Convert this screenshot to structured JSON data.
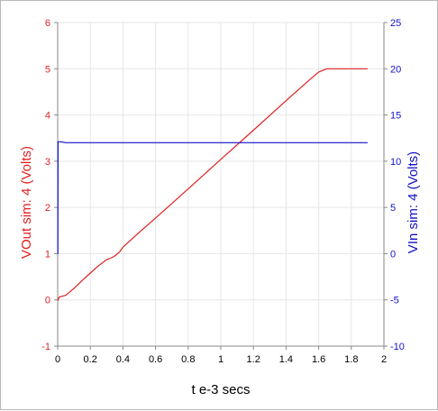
{
  "chart_data": {
    "type": "line",
    "xlabel": "t e-3 secs",
    "y_left_label": "VOut sim:  4 (Volts)",
    "y_right_label": "VIn sim:  4 (Volts)",
    "x_ticks": [
      "0",
      "0.2",
      "0.4",
      "0.6",
      "0.8",
      "1",
      "1.2",
      "1.4",
      "1.6",
      "1.8",
      "2"
    ],
    "y_left_ticks": [
      "-1",
      "0",
      "1",
      "2",
      "3",
      "4",
      "5",
      "6"
    ],
    "y_right_ticks": [
      "-10",
      "-5",
      "0",
      "5",
      "10",
      "15",
      "20",
      "25"
    ],
    "xlim": [
      0,
      2
    ],
    "y_left_lim": [
      -1,
      6
    ],
    "y_right_lim": [
      -10,
      25
    ],
    "grid": true,
    "colors": {
      "left_axis": "#e02020",
      "right_axis": "#1010c8",
      "grid": "#e6e6e6",
      "axis": "#888888"
    },
    "series": [
      {
        "name": "VOut sim:  4 (Volts)",
        "axis": "left",
        "color": "#e02020",
        "x": [
          0,
          0.01,
          0.02,
          0.05,
          0.1,
          0.15,
          0.2,
          0.25,
          0.3,
          0.33,
          0.35,
          0.38,
          0.4,
          0.5,
          0.6,
          0.8,
          1.0,
          1.2,
          1.4,
          1.55,
          1.6,
          1.65,
          1.7,
          1.8,
          1.9
        ],
        "values": [
          -0.02,
          0.06,
          0.07,
          0.1,
          0.25,
          0.42,
          0.58,
          0.74,
          0.87,
          0.91,
          0.95,
          1.04,
          1.14,
          1.46,
          1.77,
          2.4,
          3.04,
          3.67,
          4.31,
          4.78,
          4.93,
          5.0,
          5.0,
          5.0,
          5.0
        ]
      },
      {
        "name": "VIn sim:  4 (Volts)",
        "axis": "right",
        "color": "#1010c8",
        "x": [
          0,
          0.001,
          0.002,
          0.02,
          0.05,
          0.1,
          0.5,
          1.0,
          1.5,
          1.9
        ],
        "values": [
          0,
          0,
          12.1,
          12.1,
          12.0,
          12.0,
          12.0,
          12.0,
          12.0,
          12.0
        ]
      }
    ]
  }
}
